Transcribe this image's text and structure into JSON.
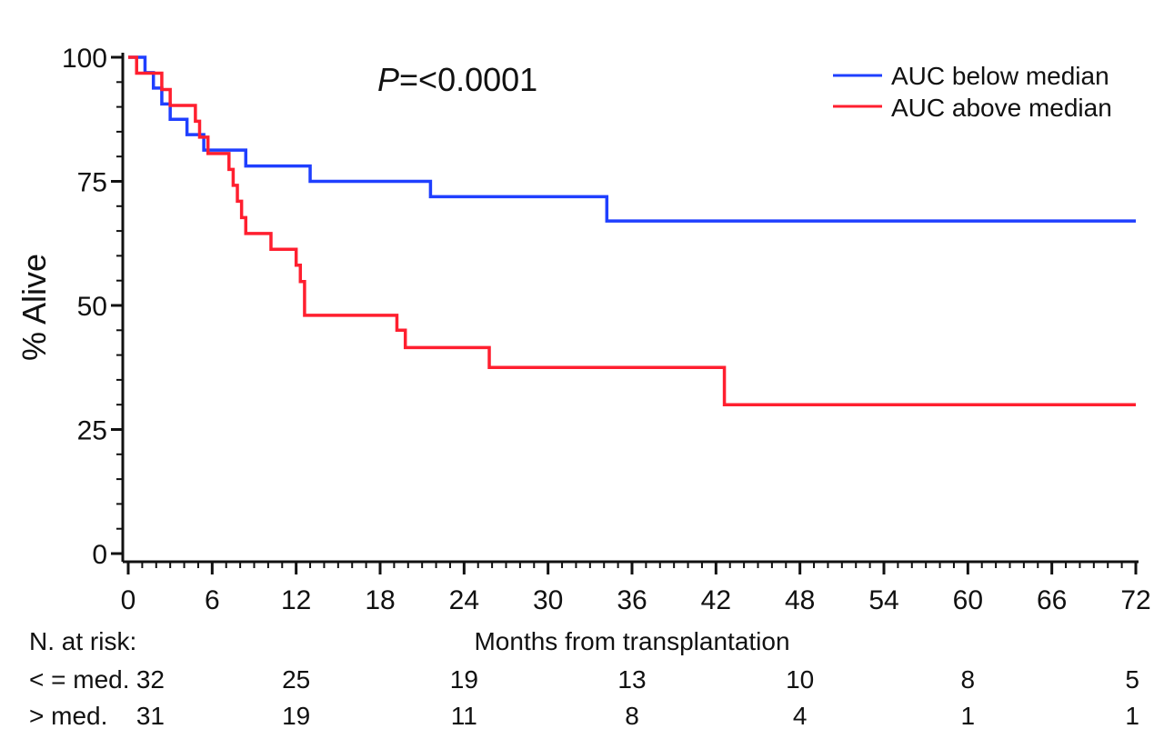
{
  "chart_data": {
    "type": "line",
    "title": "",
    "annotation": {
      "italic": "P",
      "rest": "=<0.0001"
    },
    "xlabel": "Months from transplantation",
    "ylabel": "% Alive",
    "xlim": [
      0,
      72
    ],
    "ylim": [
      0,
      100
    ],
    "xticks": [
      0,
      6,
      12,
      18,
      24,
      30,
      36,
      42,
      48,
      54,
      60,
      66,
      72
    ],
    "yticks": [
      0,
      25,
      50,
      75,
      100
    ],
    "legend_position": "top-right",
    "series": [
      {
        "name": "AUC below median",
        "color": "#1f3fff",
        "step_x": [
          0,
          1.2,
          1.8,
          2.4,
          3.0,
          4.2,
          5.4,
          6.0,
          8.4,
          13.0,
          21.6,
          34.2,
          72
        ],
        "step_y": [
          100,
          96.9,
          93.8,
          90.6,
          87.5,
          84.4,
          81.3,
          81.3,
          78.1,
          75.0,
          71.9,
          67.0,
          67.0
        ]
      },
      {
        "name": "AUC above median",
        "color": "#ff1f2f",
        "step_x": [
          0,
          0.6,
          2.4,
          3.0,
          4.8,
          5.1,
          5.4,
          5.7,
          6.0,
          7.2,
          7.5,
          7.8,
          8.1,
          8.4,
          10.2,
          12.0,
          12.3,
          12.6,
          19.2,
          19.8,
          25.8,
          42.6,
          72
        ],
        "step_y": [
          100,
          96.8,
          93.5,
          90.3,
          87.1,
          83.9,
          83.9,
          80.6,
          80.6,
          77.4,
          74.2,
          71.0,
          67.7,
          64.5,
          61.3,
          58.1,
          54.8,
          48.0,
          45.0,
          41.5,
          37.5,
          30.0,
          30.0
        ]
      }
    ],
    "risk_table": {
      "title": "N. at risk:",
      "times": [
        0,
        12,
        24,
        36,
        48,
        60,
        72
      ],
      "rows": [
        {
          "label": "< = med.",
          "values": [
            "32",
            "25",
            "19",
            "13",
            "10",
            "8",
            "5"
          ]
        },
        {
          "label": "> med.  ",
          "values": [
            "31",
            "19",
            "11",
            "8",
            "4",
            "1",
            "1"
          ]
        }
      ]
    }
  }
}
